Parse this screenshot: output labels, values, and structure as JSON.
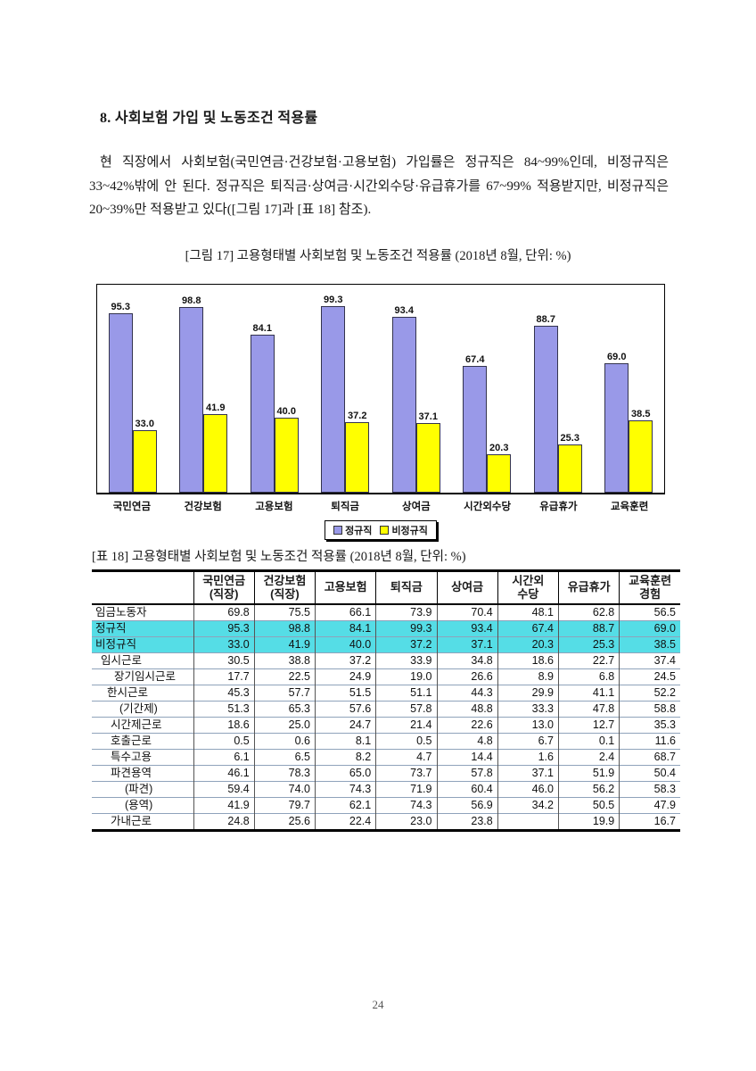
{
  "document": {
    "heading": "8. 사회보험 가입 및 노동조건 적용률",
    "paragraph": "현 직장에서 사회보험(국민연금·건강보험·고용보험) 가입률은 정규직은 84~99%인데, 비정규직은 33~42%밖에 안 된다. 정규직은 퇴직금·상여금·시간외수당·유급휴가를 67~99% 적용받지만, 비정규직은 20~39%만 적용받고 있다([그림 17]과 [표 18] 참조).",
    "page_number": "24"
  },
  "figure": {
    "caption": "[그림 17] 고용형태별 사회보험 및 노동조건 적용률 (2018년 8월, 단위: %)"
  },
  "chart_data": {
    "type": "bar",
    "title": "고용형태별 사회보험 및 노동조건 적용률 (2018년 8월, 단위: %)",
    "categories": [
      "국민연금",
      "건강보험",
      "고용보험",
      "퇴직금",
      "상여금",
      "시간외수당",
      "유급휴가",
      "교육훈련"
    ],
    "series": [
      {
        "name": "정규직",
        "color": "#9999E8",
        "values": [
          95.3,
          98.8,
          84.1,
          99.3,
          93.4,
          67.4,
          88.7,
          69.0
        ]
      },
      {
        "name": "비정규직",
        "color": "#FFFF00",
        "values": [
          33.0,
          41.9,
          40.0,
          37.2,
          37.1,
          20.3,
          25.3,
          38.5
        ]
      }
    ],
    "ylim": [
      0,
      111
    ],
    "grid": false,
    "value_labels": true,
    "legend_position": "bottom"
  },
  "table": {
    "caption": "[표 18] 고용형태별 사회보험 및 노동조건 적용률 (2018년 8월, 단위: %)",
    "columns": [
      "",
      "국민연금\n(직장)",
      "건강보험\n(직장)",
      "고용보험",
      "퇴직금",
      "상여금",
      "시간외\n수당",
      "유급휴가",
      "교육훈련\n경험"
    ],
    "rows": [
      {
        "label": "임금노동자",
        "indent": 0,
        "highlight": false,
        "values": [
          "69.8",
          "75.5",
          "66.1",
          "73.9",
          "70.4",
          "48.1",
          "62.8",
          "56.5"
        ]
      },
      {
        "label": "정규직",
        "indent": 0,
        "highlight": true,
        "values": [
          "95.3",
          "98.8",
          "84.1",
          "99.3",
          "93.4",
          "67.4",
          "88.7",
          "69.0"
        ]
      },
      {
        "label": "비정규직",
        "indent": 0,
        "highlight": true,
        "values": [
          "33.0",
          "41.9",
          "40.0",
          "37.2",
          "37.1",
          "20.3",
          "25.3",
          "38.5"
        ]
      },
      {
        "label": "임시근로",
        "indent": 1,
        "highlight": false,
        "values": [
          "30.5",
          "38.8",
          "37.2",
          "33.9",
          "34.8",
          "18.6",
          "22.7",
          "37.4"
        ]
      },
      {
        "label": "장기임시근로",
        "indent": 4,
        "highlight": false,
        "values": [
          "17.7",
          "22.5",
          "24.9",
          "19.0",
          "26.6",
          "8.9",
          "6.8",
          "24.5"
        ]
      },
      {
        "label": "한시근로",
        "indent": 2,
        "highlight": false,
        "values": [
          "45.3",
          "57.7",
          "51.5",
          "51.1",
          "44.3",
          "29.9",
          "41.1",
          "52.2"
        ]
      },
      {
        "label": "(기간제)",
        "indent": 5,
        "highlight": false,
        "values": [
          "51.3",
          "65.3",
          "57.6",
          "57.8",
          "48.8",
          "33.3",
          "47.8",
          "58.8"
        ]
      },
      {
        "label": "시간제근로",
        "indent": 3,
        "highlight": false,
        "values": [
          "18.6",
          "25.0",
          "24.7",
          "21.4",
          "22.6",
          "13.0",
          "12.7",
          "35.3"
        ]
      },
      {
        "label": "호출근로",
        "indent": 3,
        "highlight": false,
        "values": [
          "0.5",
          "0.6",
          "8.1",
          "0.5",
          "4.8",
          "6.7",
          "0.1",
          "11.6"
        ]
      },
      {
        "label": "특수고용",
        "indent": 3,
        "highlight": false,
        "values": [
          "6.1",
          "6.5",
          "8.2",
          "4.7",
          "14.4",
          "1.6",
          "2.4",
          "68.7"
        ]
      },
      {
        "label": "파견용역",
        "indent": 3,
        "highlight": false,
        "values": [
          "46.1",
          "78.3",
          "65.0",
          "73.7",
          "57.8",
          "37.1",
          "51.9",
          "50.4"
        ]
      },
      {
        "label": "(파견)",
        "indent": 6,
        "highlight": false,
        "values": [
          "59.4",
          "74.0",
          "74.3",
          "71.9",
          "60.4",
          "46.0",
          "56.2",
          "58.3"
        ]
      },
      {
        "label": "(용역)",
        "indent": 6,
        "highlight": false,
        "values": [
          "41.9",
          "79.7",
          "62.1",
          "74.3",
          "56.9",
          "34.2",
          "50.5",
          "47.9"
        ]
      },
      {
        "label": "가내근로",
        "indent": 3,
        "highlight": false,
        "values": [
          "24.8",
          "25.6",
          "22.4",
          "23.0",
          "23.8",
          "",
          "19.9",
          "16.7"
        ]
      }
    ]
  },
  "colors": {
    "bar_regular": "#9999E8",
    "bar_irregular": "#FFFF00",
    "row_highlight": "#55DDE6"
  }
}
